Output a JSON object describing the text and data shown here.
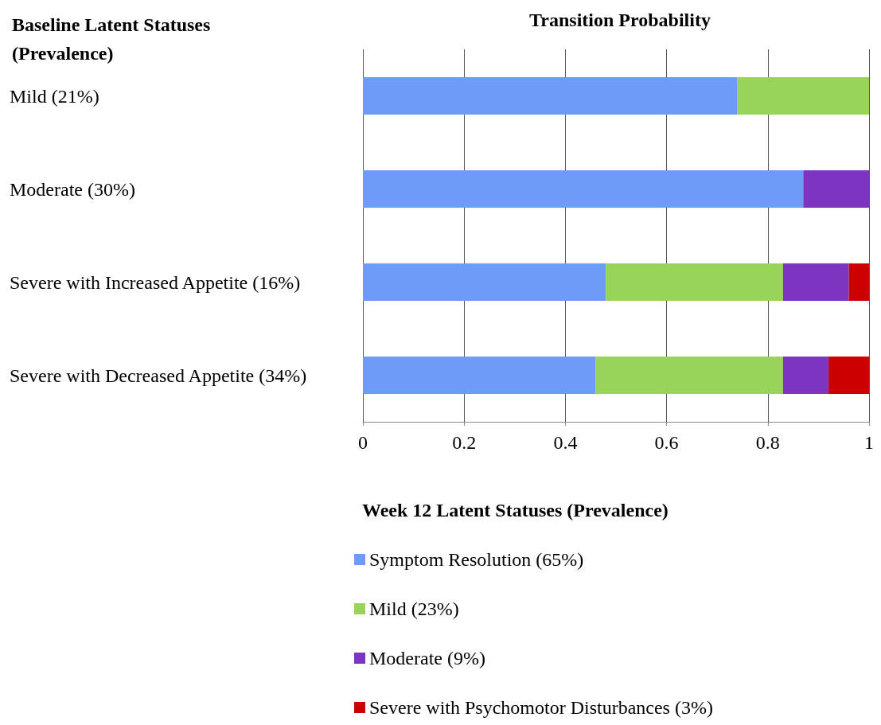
{
  "chart_data": {
    "type": "bar",
    "orientation": "horizontal",
    "stacked": true,
    "title": "Transition Probability",
    "ylabel": "Baseline Latent Statuses (Prevalence)",
    "legend_title": "Week 12 Latent Statuses (Prevalence)",
    "categories": [
      "Mild (21%)",
      "Moderate (30%)",
      "Severe with Increased Appetite (16%)",
      "Severe with Decreased Appetite (34%)"
    ],
    "series": [
      {
        "name": "Symptom Resolution (65%)",
        "color": "#6d9bf7",
        "values": [
          0.74,
          0.87,
          0.48,
          0.46
        ]
      },
      {
        "name": "Mild (23%)",
        "color": "#98d35a",
        "values": [
          0.26,
          null,
          0.35,
          0.37
        ]
      },
      {
        "name": "Moderate (9%)",
        "color": "#7d35c0",
        "values": [
          null,
          0.13,
          0.13,
          0.09
        ]
      },
      {
        "name": "Severe with Psychomotor Disturbances (3%)",
        "color": "#cc0000",
        "values": [
          null,
          null,
          0.04,
          0.08
        ]
      }
    ],
    "xlim": [
      0,
      1
    ],
    "xticks": [
      0,
      0.2,
      0.4,
      0.6,
      0.8,
      1
    ],
    "grid": "x",
    "legend": "bottom"
  }
}
